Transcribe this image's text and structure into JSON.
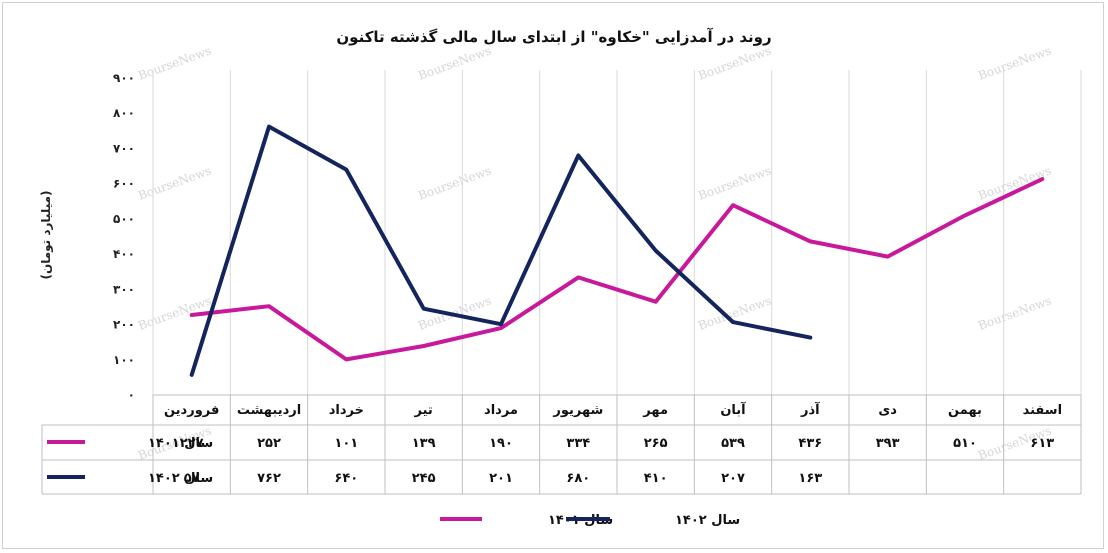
{
  "chart_data": {
    "type": "line",
    "title": "روند در آمدزایی \"خکاوه\" از ابتدای سال مالی گذشته تاکنون",
    "ylabel": "(میلیارد تومان)",
    "ylim": [
      0,
      900
    ],
    "y_ticks": [
      "۰",
      "۱۰۰",
      "۲۰۰",
      "۳۰۰",
      "۴۰۰",
      "۵۰۰",
      "۶۰۰",
      "۷۰۰",
      "۸۰۰",
      "۹۰۰"
    ],
    "y_tick_values": [
      0,
      100,
      200,
      300,
      400,
      500,
      600,
      700,
      800,
      900
    ],
    "grid": "vertical",
    "legend_position": "bottom",
    "categories": [
      "فروردین",
      "اردیبهشت",
      "خرداد",
      "تیر",
      "مرداد",
      "شهریور",
      "مهر",
      "آبان",
      "آذر",
      "دی",
      "بهمن",
      "اسفند"
    ],
    "series": [
      {
        "name": "سال ۱۴۰۱",
        "color": "#C8199A",
        "values": [
          227,
          252,
          101,
          139,
          190,
          334,
          265,
          539,
          436,
          393,
          510,
          613
        ],
        "labels": [
          "۲۲۷",
          "۲۵۲",
          "۱۰۱",
          "۱۳۹",
          "۱۹۰",
          "۳۳۴",
          "۲۶۵",
          "۵۳۹",
          "۴۳۶",
          "۳۹۳",
          "۵۱۰",
          "۶۱۳"
        ]
      },
      {
        "name": "سال ۱۴۰۲",
        "color": "#14245C",
        "values": [
          57,
          762,
          640,
          245,
          201,
          680,
          410,
          207,
          163,
          null,
          null,
          null
        ],
        "labels": [
          "۵۷",
          "۷۶۲",
          "۶۴۰",
          "۲۴۵",
          "۲۰۱",
          "۶۸۰",
          "۴۱۰",
          "۲۰۷",
          "۱۶۳",
          "",
          "",
          ""
        ]
      }
    ],
    "watermark": "BourseNews"
  }
}
